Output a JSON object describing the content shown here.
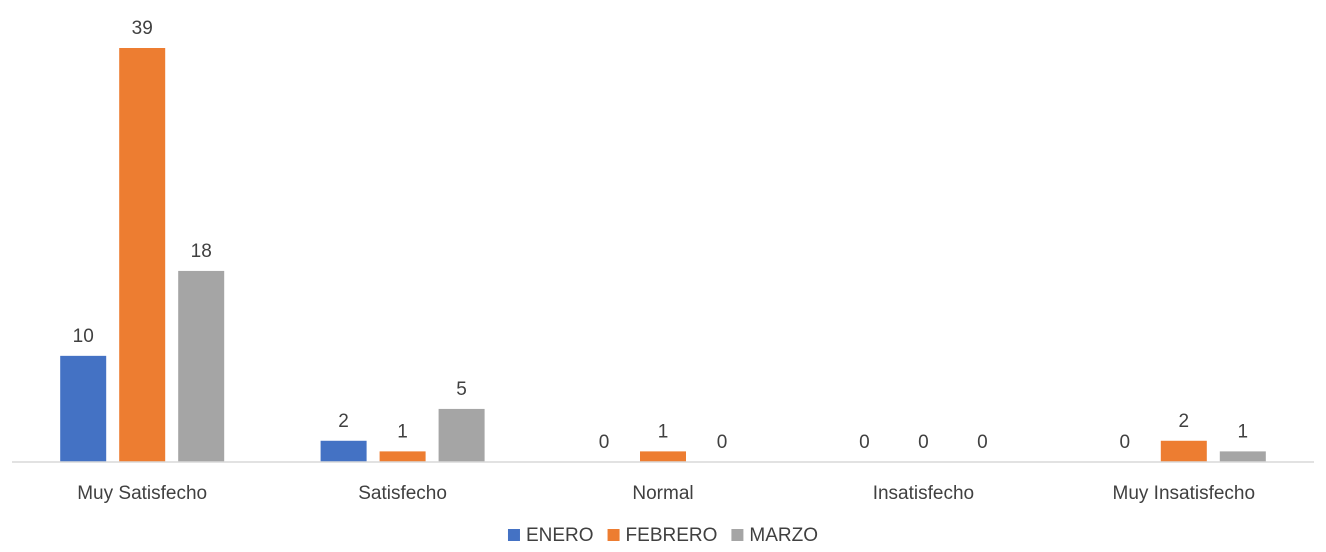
{
  "chart_data": {
    "type": "bar",
    "categories": [
      "Muy Satisfecho",
      "Satisfecho",
      "Normal",
      "Insatisfecho",
      "Muy Insatisfecho"
    ],
    "series": [
      {
        "name": "ENERO",
        "values": [
          10,
          2,
          0,
          0,
          0
        ],
        "color": "#4472C4"
      },
      {
        "name": "FEBRERO",
        "values": [
          39,
          1,
          1,
          0,
          2
        ],
        "color": "#ED7D31"
      },
      {
        "name": "MARZO",
        "values": [
          18,
          5,
          0,
          0,
          1
        ],
        "color": "#A5A5A5"
      }
    ],
    "ylim": [
      0,
      39
    ],
    "grid": false,
    "legend_position": "bottom",
    "data_labels": true,
    "axis_color": "#D9D9D9"
  }
}
